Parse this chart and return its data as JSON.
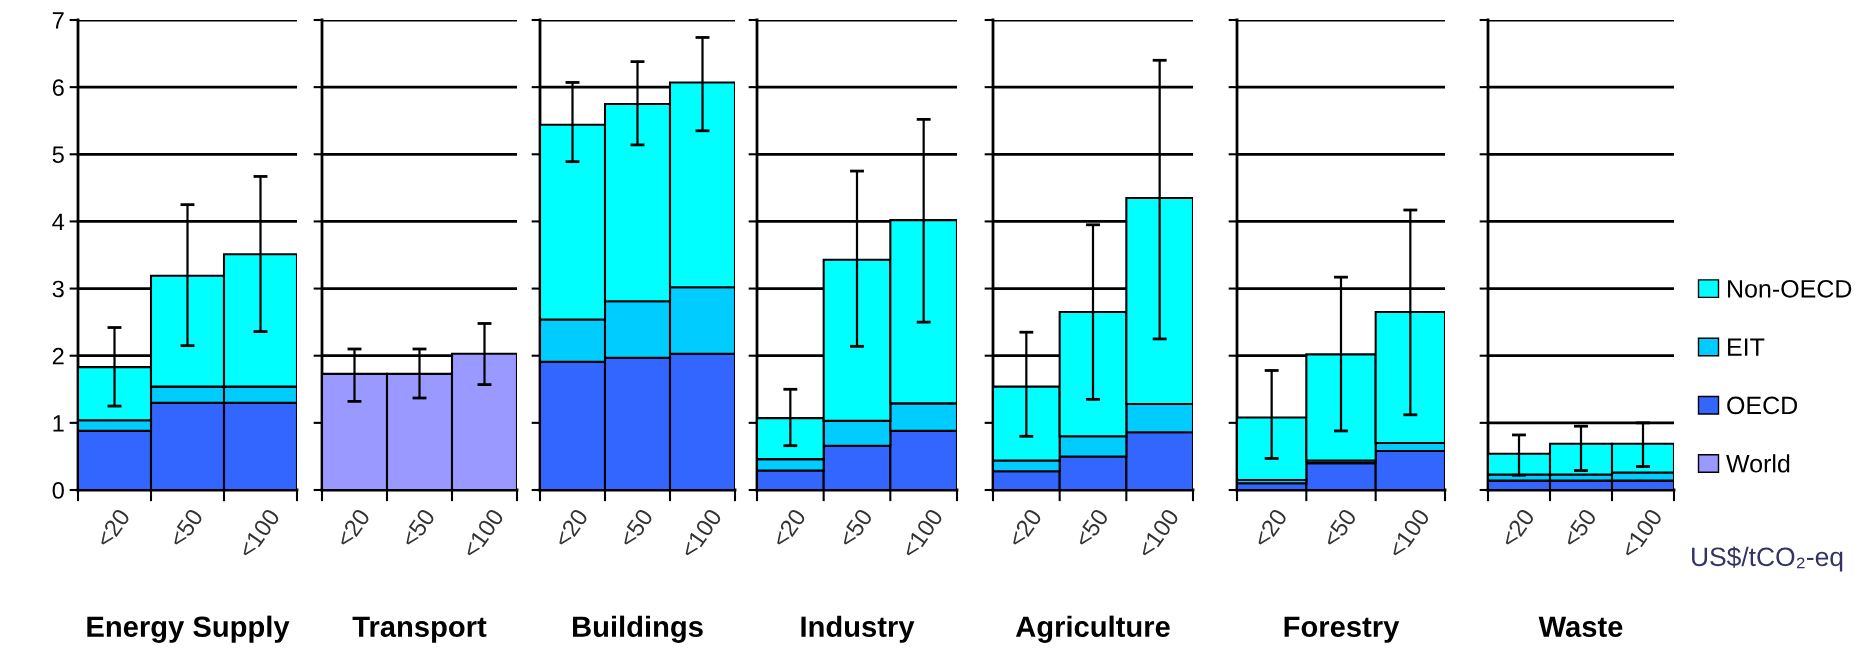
{
  "chart_data": [
    {
      "type": "bar",
      "title": "Energy Supply",
      "stacked": true,
      "legend": "right",
      "categories": [
        "<20",
        "<50",
        "<100"
      ],
      "ylim": [
        0,
        7
      ],
      "yticks": [
        0,
        1,
        2,
        3,
        4,
        5,
        6,
        7
      ],
      "grid": "y",
      "series": [
        {
          "name": "OECD",
          "color": "#3366ff",
          "values": [
            0.88,
            1.3,
            1.3
          ]
        },
        {
          "name": "EIT",
          "color": "#00ccff",
          "values": [
            0.16,
            0.24,
            0.24
          ]
        },
        {
          "name": "Non-OECD",
          "color": "#00ffff",
          "values": [
            0.79,
            1.65,
            1.97
          ],
          "errors": [
            [
              1.25,
              2.42
            ],
            [
              2.15,
              4.25
            ],
            [
              2.36,
              4.67
            ]
          ]
        }
      ]
    },
    {
      "type": "bar",
      "title": "Transport",
      "stacked": true,
      "categories": [
        "<20",
        "<50",
        "<100"
      ],
      "ylim": [
        0,
        7
      ],
      "yticks": [
        0,
        1,
        2,
        3,
        4,
        5,
        6,
        7
      ],
      "grid": "y",
      "tick_labels": "x",
      "series": [
        {
          "name": "World",
          "color": "#9999ff",
          "values": [
            1.73,
            1.73,
            2.03
          ],
          "errors": [
            [
              1.32,
              2.1
            ],
            [
              1.37,
              2.1
            ],
            [
              1.57,
              2.48
            ]
          ]
        }
      ]
    },
    {
      "type": "bar",
      "title": "Buildings",
      "stacked": true,
      "categories": [
        "<20",
        "<50",
        "<100"
      ],
      "ylim": [
        0,
        7
      ],
      "yticks": [
        0,
        1,
        2,
        3,
        4,
        5,
        6,
        7
      ],
      "grid": "y",
      "tick_labels": "x",
      "series": [
        {
          "name": "OECD",
          "color": "#3366ff",
          "values": [
            1.91,
            1.97,
            2.03
          ]
        },
        {
          "name": "EIT",
          "color": "#00ccff",
          "values": [
            0.63,
            0.84,
            0.99
          ]
        },
        {
          "name": "Non-OECD",
          "color": "#00ffff",
          "values": [
            2.9,
            2.94,
            3.05
          ],
          "errors": [
            [
              4.89,
              6.07
            ],
            [
              5.14,
              6.38
            ],
            [
              5.35,
              6.74
            ]
          ]
        }
      ]
    },
    {
      "type": "bar",
      "title": "Industry",
      "stacked": true,
      "categories": [
        "<20",
        "<50",
        "<100"
      ],
      "ylim": [
        0,
        7
      ],
      "yticks": [
        0,
        1,
        2,
        3,
        4,
        5,
        6,
        7
      ],
      "grid": "y",
      "tick_labels": "x",
      "series": [
        {
          "name": "OECD",
          "color": "#3366ff",
          "values": [
            0.29,
            0.66,
            0.88
          ]
        },
        {
          "name": "EIT",
          "color": "#00ccff",
          "values": [
            0.17,
            0.37,
            0.41
          ]
        },
        {
          "name": "Non-OECD",
          "color": "#00ffff",
          "values": [
            0.61,
            2.4,
            2.73
          ],
          "errors": [
            [
              0.66,
              1.5
            ],
            [
              2.14,
              4.75
            ],
            [
              2.5,
              5.52
            ]
          ]
        }
      ]
    },
    {
      "type": "bar",
      "title": "Agriculture",
      "stacked": true,
      "categories": [
        "<20",
        "<50",
        "<100"
      ],
      "ylim": [
        0,
        7
      ],
      "yticks": [
        0,
        1,
        2,
        3,
        4,
        5,
        6,
        7
      ],
      "grid": "y",
      "tick_labels": "x",
      "series": [
        {
          "name": "OECD",
          "color": "#3366ff",
          "values": [
            0.28,
            0.5,
            0.86
          ]
        },
        {
          "name": "EIT",
          "color": "#00ccff",
          "values": [
            0.16,
            0.3,
            0.42
          ]
        },
        {
          "name": "Non-OECD",
          "color": "#00ffff",
          "values": [
            1.1,
            1.85,
            3.07
          ],
          "errors": [
            [
              0.8,
              2.35
            ],
            [
              1.35,
              3.95
            ],
            [
              2.25,
              6.4
            ]
          ]
        }
      ]
    },
    {
      "type": "bar",
      "title": "Forestry",
      "stacked": true,
      "categories": [
        "<20",
        "<50",
        "<100"
      ],
      "ylim": [
        0,
        7
      ],
      "yticks": [
        0,
        1,
        2,
        3,
        4,
        5,
        6,
        7
      ],
      "grid": "y",
      "tick_labels": "x",
      "series": [
        {
          "name": "OECD",
          "color": "#3366ff",
          "values": [
            0.1,
            0.4,
            0.58
          ]
        },
        {
          "name": "EIT",
          "color": "#00ccff",
          "values": [
            0.05,
            0.04,
            0.12
          ]
        },
        {
          "name": "Non-OECD",
          "color": "#00ffff",
          "values": [
            0.93,
            1.58,
            1.95
          ],
          "errors": [
            [
              0.47,
              1.78
            ],
            [
              0.88,
              3.17
            ],
            [
              1.12,
              4.17
            ]
          ]
        }
      ]
    },
    {
      "type": "bar",
      "title": "Waste",
      "xlabel": "US$/tCO₂-eq",
      "stacked": true,
      "categories": [
        "<20",
        "<50",
        "<100"
      ],
      "ylim": [
        0,
        7
      ],
      "yticks": [
        0,
        1,
        2,
        3,
        4,
        5,
        6,
        7
      ],
      "grid": "y",
      "tick_labels": "x",
      "series": [
        {
          "name": "OECD",
          "color": "#3366ff",
          "values": [
            0.14,
            0.14,
            0.14
          ]
        },
        {
          "name": "EIT",
          "color": "#00ccff",
          "values": [
            0.09,
            0.09,
            0.12
          ]
        },
        {
          "name": "Non-OECD",
          "color": "#00ffff",
          "values": [
            0.31,
            0.46,
            0.43
          ],
          "errors": [
            [
              0.22,
              0.82
            ],
            [
              0.29,
              0.95
            ],
            [
              0.35,
              1.0
            ]
          ]
        }
      ]
    }
  ]
}
